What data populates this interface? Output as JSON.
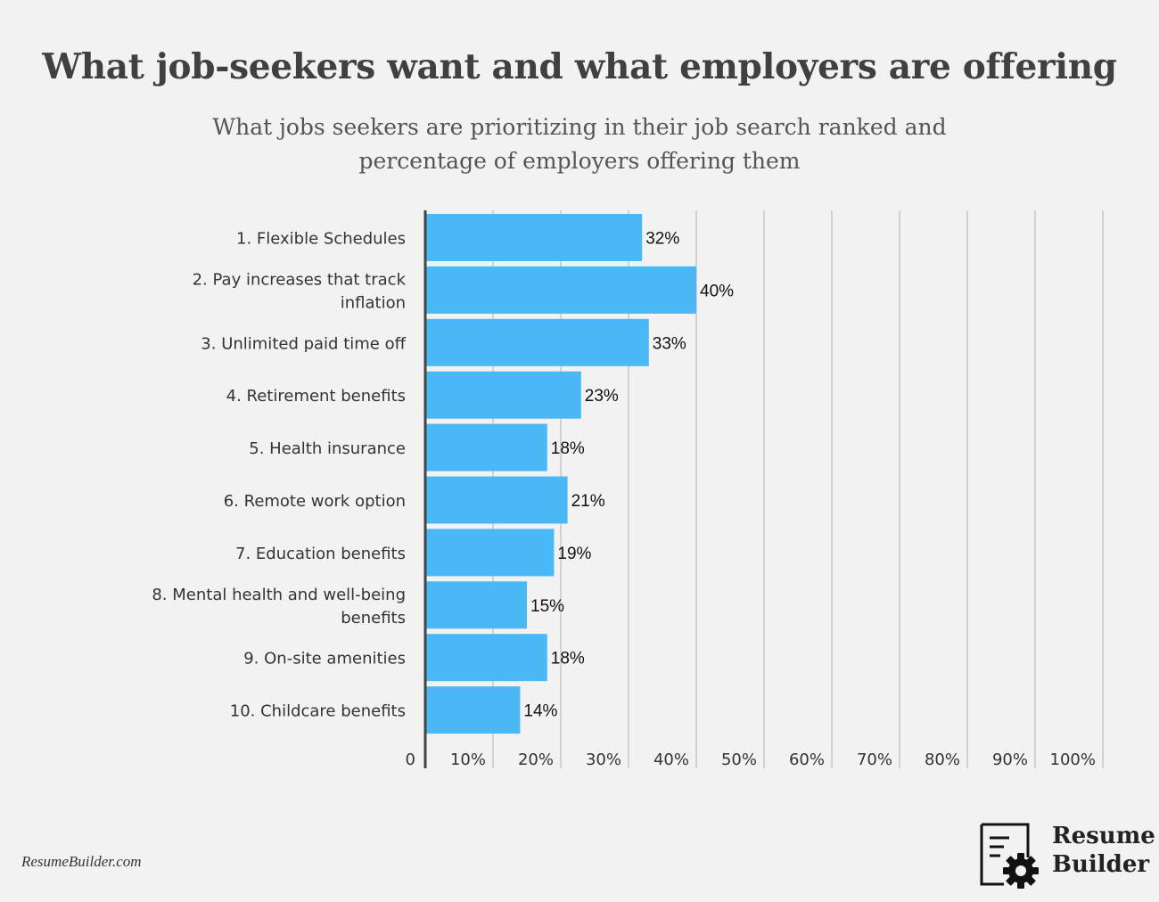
{
  "header": {
    "title": "What job-seekers want and what employers are offering",
    "subtitle": "What jobs seekers are prioritizing in their job search ranked and percentage of employers offering them"
  },
  "chart_data": {
    "type": "bar",
    "orientation": "horizontal",
    "categories": [
      "1. Flexible Schedules",
      "2. Pay increases that track inflation",
      "3. Unlimited paid time off",
      "4. Retirement benefits",
      "5. Health insurance",
      "6. Remote work option",
      "7. Education benefits",
      "8. Mental health and well-being benefits",
      "9. On-site amenities",
      "10. Childcare benefits"
    ],
    "values": [
      32,
      40,
      33,
      23,
      18,
      21,
      19,
      15,
      18,
      14
    ],
    "data_labels": [
      "32%",
      "40%",
      "33%",
      "23%",
      "18%",
      "21%",
      "19%",
      "15%",
      "18%",
      "14%"
    ],
    "x_ticks": [
      "0",
      "10%",
      "20%",
      "30%",
      "40%",
      "50%",
      "60%",
      "70%",
      "80%",
      "90%",
      "100%"
    ],
    "xlim": [
      0,
      100
    ],
    "grid": true,
    "bar_color": "#4ab8f5"
  },
  "footer": {
    "source": "ResumeBuilder.com",
    "brand_line1": "Resume",
    "brand_line2": "Builder"
  }
}
